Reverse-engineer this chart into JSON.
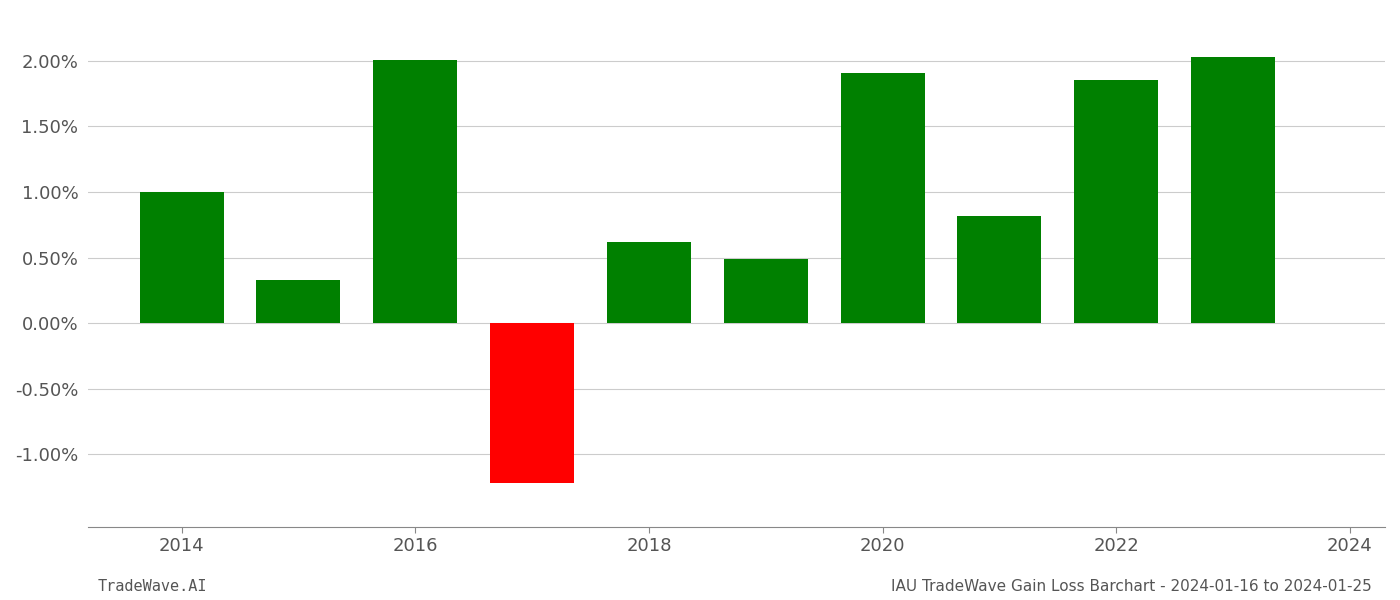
{
  "years": [
    2014,
    2015,
    2016,
    2017,
    2018,
    2019,
    2020,
    2021,
    2022,
    2023
  ],
  "values": [
    1.003,
    0.332,
    2.005,
    -1.22,
    0.62,
    0.49,
    1.91,
    0.82,
    1.855,
    2.03
  ],
  "bar_colors": [
    "#008000",
    "#008000",
    "#008000",
    "#ff0000",
    "#008000",
    "#008000",
    "#008000",
    "#008000",
    "#008000",
    "#008000"
  ],
  "title": "IAU TradeWave Gain Loss Barchart - 2024-01-16 to 2024-01-25",
  "watermark": "TradeWave.AI",
  "background_color": "#ffffff",
  "grid_color": "#cccccc",
  "ylim": [
    -1.55,
    2.35
  ],
  "ytick_values": [
    -1.0,
    -0.5,
    0.0,
    0.5,
    1.0,
    1.5,
    2.0
  ],
  "xtick_positions": [
    2014,
    2016,
    2018,
    2020,
    2022,
    2024
  ],
  "xtick_labels": [
    "2014",
    "2016",
    "2018",
    "2020",
    "2022",
    "2024"
  ],
  "xlim": [
    2013.2,
    2024.3
  ],
  "bar_width": 0.72,
  "tick_fontsize": 13,
  "title_fontsize": 11,
  "watermark_fontsize": 11
}
